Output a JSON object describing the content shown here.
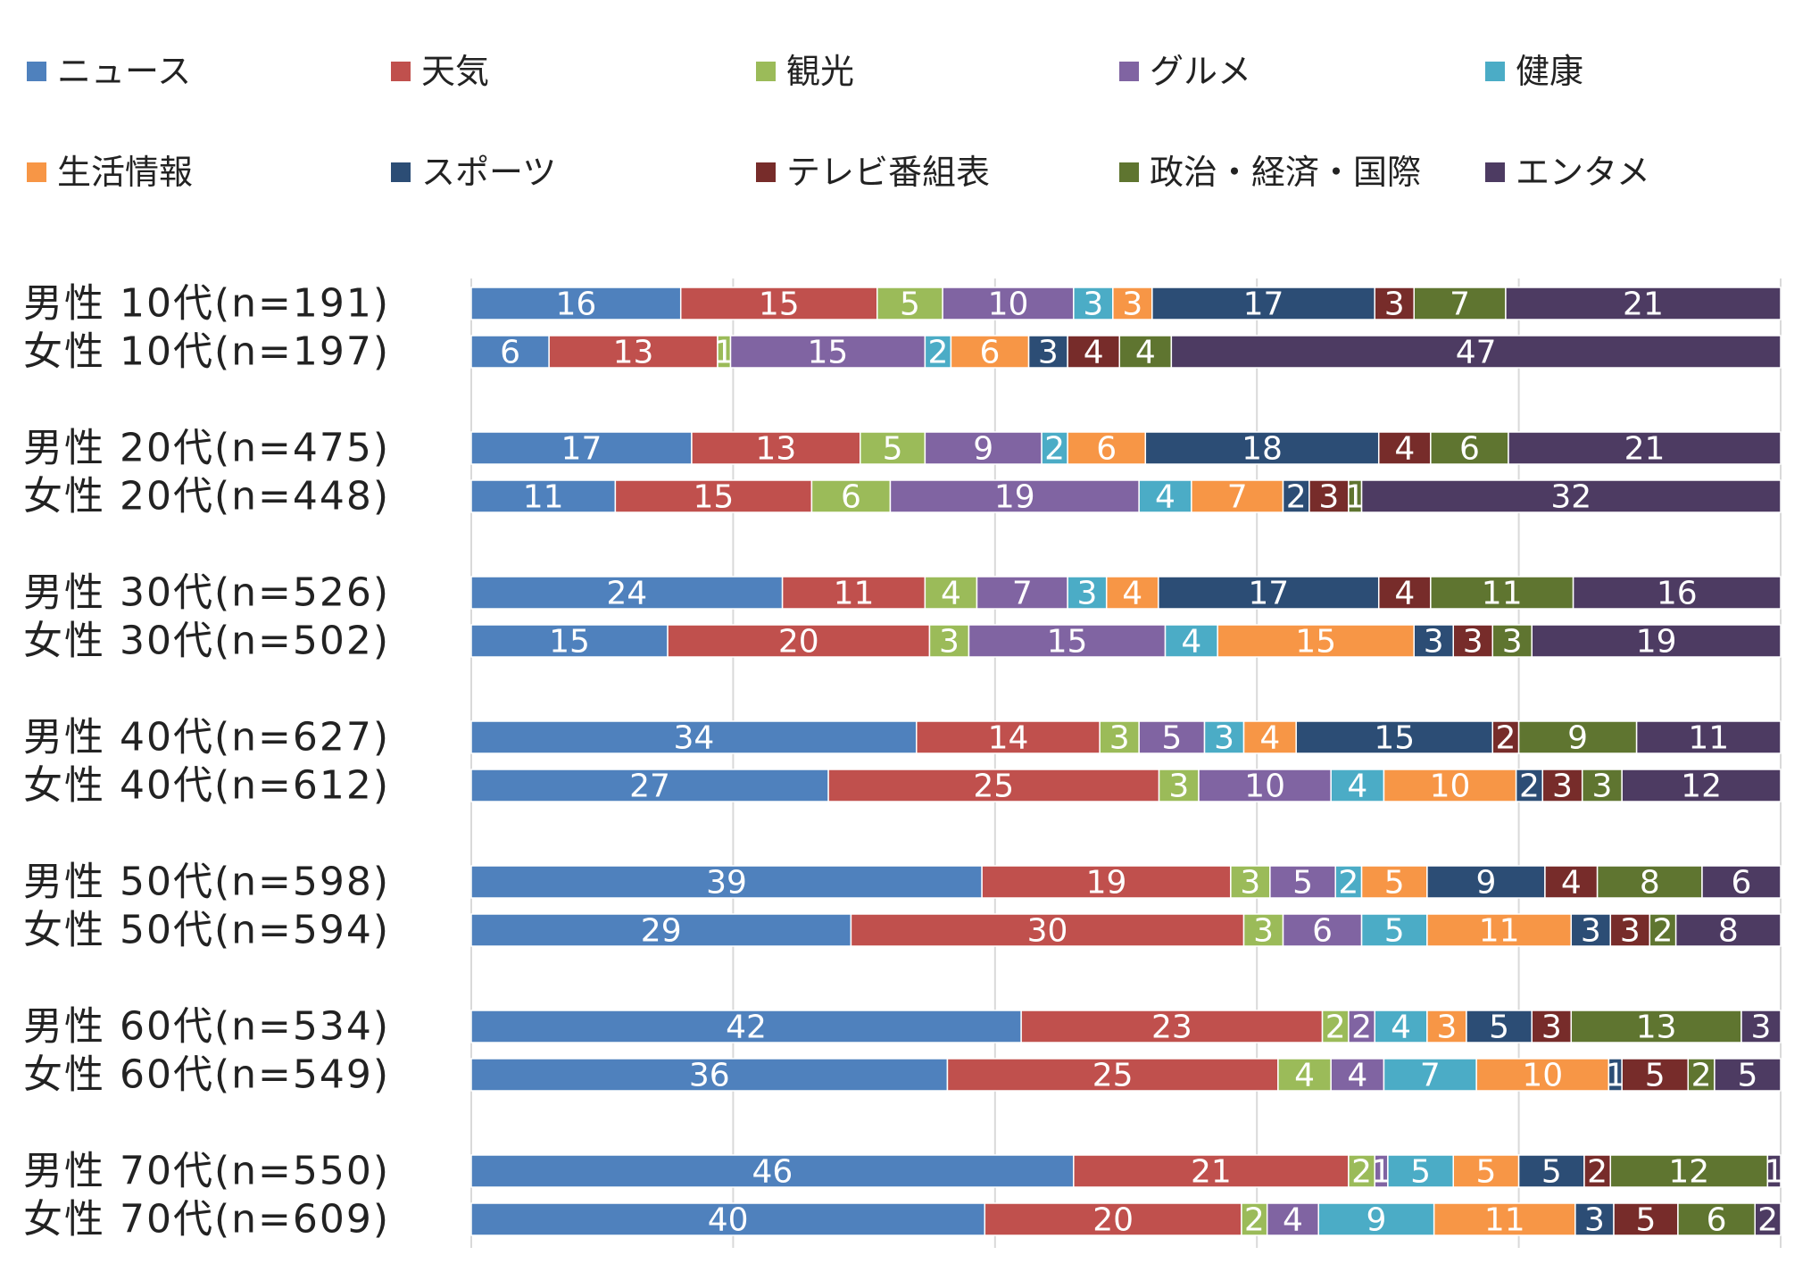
{
  "chart_data": {
    "type": "bar",
    "orientation": "horizontal",
    "stacked": "percent",
    "grid": true,
    "legend_position": "top",
    "title": "",
    "xlabel": "",
    "ylabel": "",
    "xlim": [
      0,
      100
    ],
    "categories": [
      "男性 10代(n=191)",
      "女性 10代(n=197)",
      "男性 20代(n=475)",
      "女性 20代(n=448)",
      "男性 30代(n=526)",
      "女性 30代(n=502)",
      "男性 40代(n=627)",
      "女性 40代(n=612)",
      "男性 50代(n=598)",
      "女性 50代(n=594)",
      "男性 60代(n=534)",
      "女性 60代(n=549)",
      "男性 70代(n=550)",
      "女性 70代(n=609)"
    ],
    "series": [
      {
        "name": "ニュース",
        "color": "#4F81BD",
        "values": [
          16,
          6,
          17,
          11,
          24,
          15,
          34,
          27,
          39,
          29,
          42,
          36,
          46,
          40
        ]
      },
      {
        "name": "天気",
        "color": "#C0504D",
        "values": [
          15,
          13,
          13,
          15,
          11,
          20,
          14,
          25,
          19,
          30,
          23,
          25,
          21,
          20
        ]
      },
      {
        "name": "観光",
        "color": "#9BBB59",
        "values": [
          5,
          1,
          5,
          6,
          4,
          3,
          3,
          3,
          3,
          3,
          2,
          4,
          2,
          2
        ]
      },
      {
        "name": "グルメ",
        "color": "#8064A2",
        "values": [
          10,
          15,
          9,
          19,
          7,
          15,
          5,
          10,
          5,
          6,
          2,
          4,
          1,
          4
        ]
      },
      {
        "name": "健康",
        "color": "#4BACC6",
        "values": [
          3,
          2,
          2,
          4,
          3,
          4,
          3,
          4,
          2,
          5,
          4,
          7,
          5,
          9
        ]
      },
      {
        "name": "生活情報",
        "color": "#F79646",
        "values": [
          3,
          6,
          6,
          7,
          4,
          15,
          4,
          10,
          5,
          11,
          3,
          10,
          5,
          11
        ]
      },
      {
        "name": "スポーツ",
        "color": "#2C4D75",
        "values": [
          17,
          3,
          18,
          2,
          17,
          3,
          15,
          2,
          9,
          3,
          5,
          1,
          5,
          3
        ]
      },
      {
        "name": "テレビ番組表",
        "color": "#772C2A",
        "values": [
          3,
          4,
          4,
          3,
          4,
          3,
          2,
          3,
          4,
          3,
          3,
          5,
          2,
          5
        ]
      },
      {
        "name": "政治・経済・国際",
        "color": "#5F7530",
        "values": [
          7,
          4,
          6,
          1,
          11,
          3,
          9,
          3,
          8,
          2,
          13,
          2,
          12,
          6
        ]
      },
      {
        "name": "エンタメ",
        "color": "#4D3B62",
        "values": [
          21,
          47,
          21,
          32,
          16,
          19,
          11,
          12,
          6,
          8,
          3,
          5,
          1,
          2
        ]
      }
    ]
  }
}
